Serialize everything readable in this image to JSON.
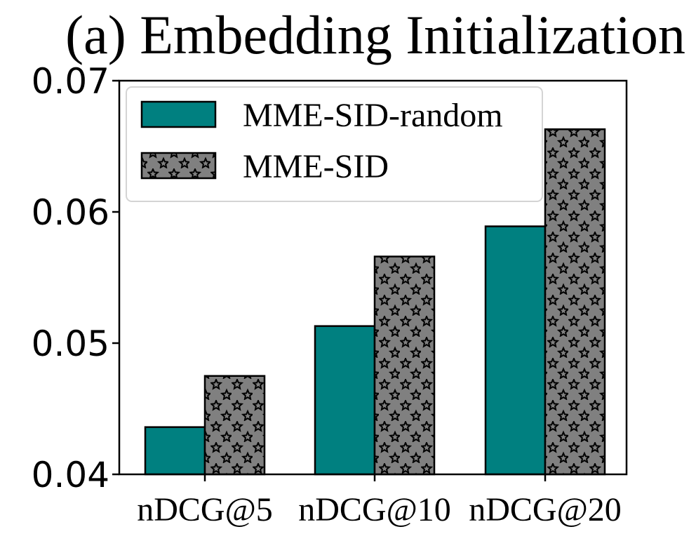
{
  "chart_data": {
    "type": "bar",
    "title": "(a) Embedding Initialization",
    "xlabel": "",
    "ylabel": "",
    "categories": [
      "nDCG@5",
      "nDCG@10",
      "nDCG@20"
    ],
    "ylim": [
      0.04,
      0.07
    ],
    "yticks": [
      "0.04",
      "0.05",
      "0.06",
      "0.07"
    ],
    "ytick_values": [
      0.04,
      0.05,
      0.06,
      0.07
    ],
    "grid": false,
    "legend_position": "top-left",
    "series": [
      {
        "name": "MME-SID-random",
        "values": [
          0.0436,
          0.0513,
          0.0589
        ],
        "color": "#008080",
        "hatch": "none"
      },
      {
        "name": "MME-SID",
        "values": [
          0.0475,
          0.0566,
          0.0663
        ],
        "color": "#808080",
        "hatch": "stars"
      }
    ]
  }
}
